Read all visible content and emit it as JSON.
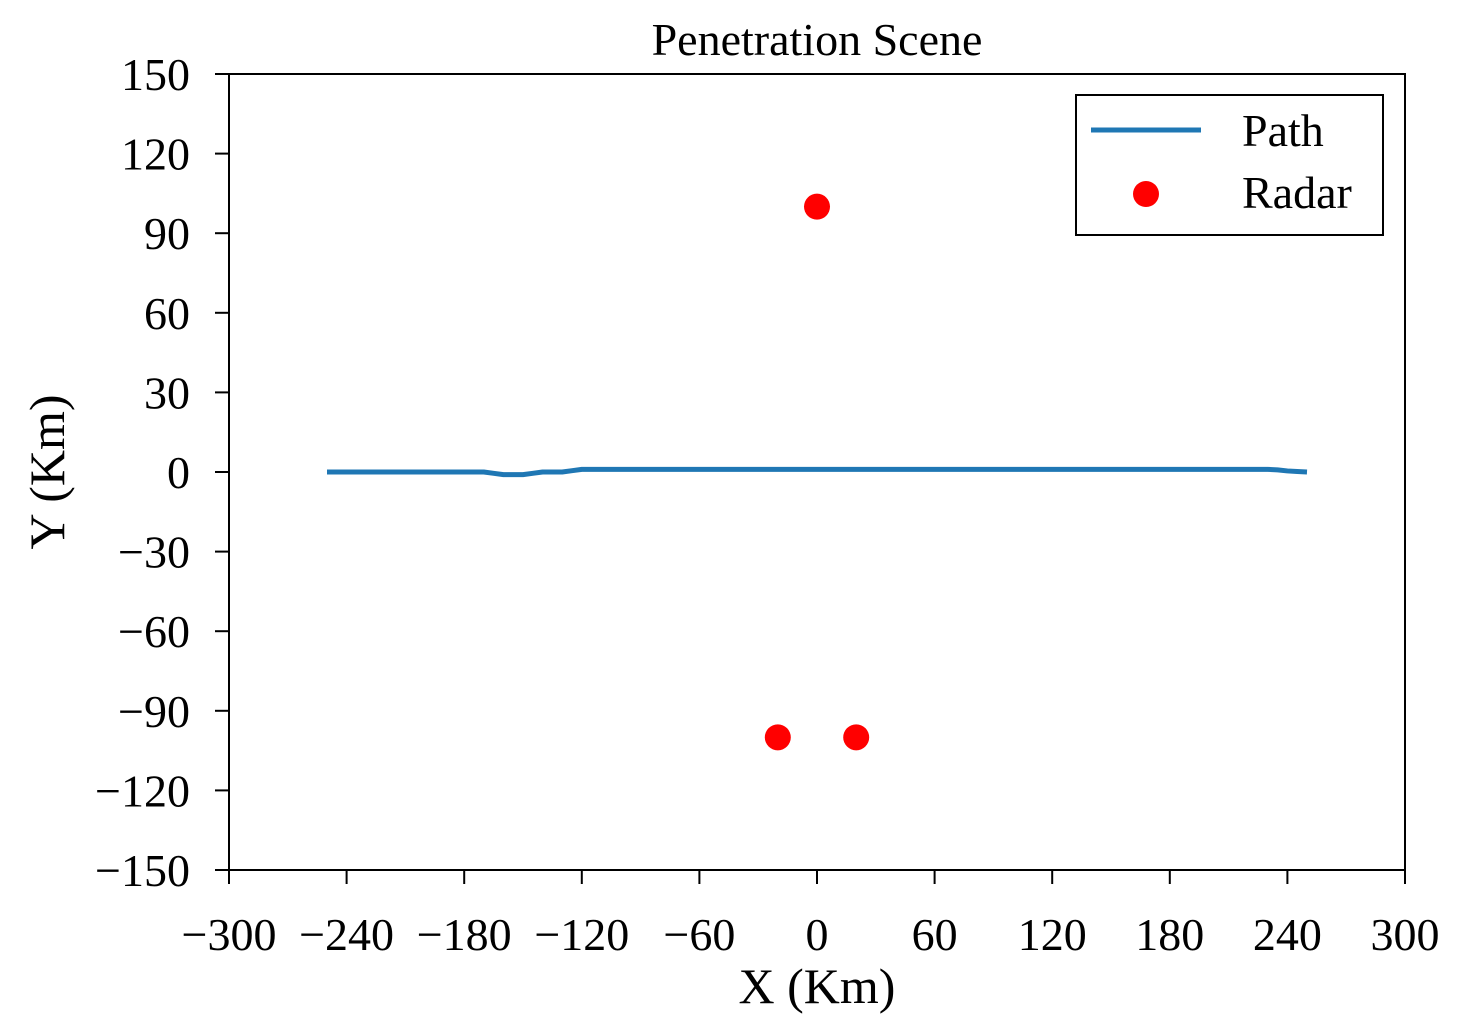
{
  "chart_data": {
    "type": "line",
    "title": "Penetration Scene",
    "xlabel": "X (Km)",
    "ylabel": "Y (Km)",
    "xlim": [
      -300,
      300
    ],
    "ylim": [
      -150,
      150
    ],
    "grid": false,
    "legend_position": "top-right",
    "xticks": [
      -300,
      -240,
      -180,
      -120,
      -60,
      0,
      60,
      120,
      180,
      240,
      300
    ],
    "xtick_labels": [
      "−300",
      "−240",
      "−180",
      "−120",
      "−60",
      "0",
      "60",
      "120",
      "180",
      "240",
      "300"
    ],
    "yticks": [
      150,
      120,
      90,
      60,
      30,
      0,
      -30,
      -60,
      -90,
      -120,
      -150
    ],
    "ytick_labels": [
      "150",
      "120",
      "90",
      "60",
      "30",
      "0",
      "−30",
      "−60",
      "−90",
      "−120",
      "−150"
    ],
    "series": [
      {
        "name": "Path",
        "kind": "line",
        "color": "#1f77b4",
        "x": [
          -250,
          -230,
          -200,
          -170,
          -165,
          -160,
          -150,
          -145,
          -140,
          -130,
          -125,
          -120,
          -100,
          -60,
          0,
          60,
          120,
          180,
          230,
          235,
          240,
          245,
          250
        ],
        "y": [
          0,
          0,
          0,
          0,
          -0.5,
          -1,
          -1,
          -0.5,
          0,
          0,
          0.5,
          1,
          1,
          1,
          1,
          1,
          1,
          1,
          1,
          0.8,
          0.4,
          0.2,
          0
        ]
      },
      {
        "name": "Radar",
        "kind": "scatter",
        "color": "#ff0000",
        "x": [
          0,
          -20,
          20
        ],
        "y": [
          100,
          -100,
          -100
        ]
      }
    ]
  }
}
